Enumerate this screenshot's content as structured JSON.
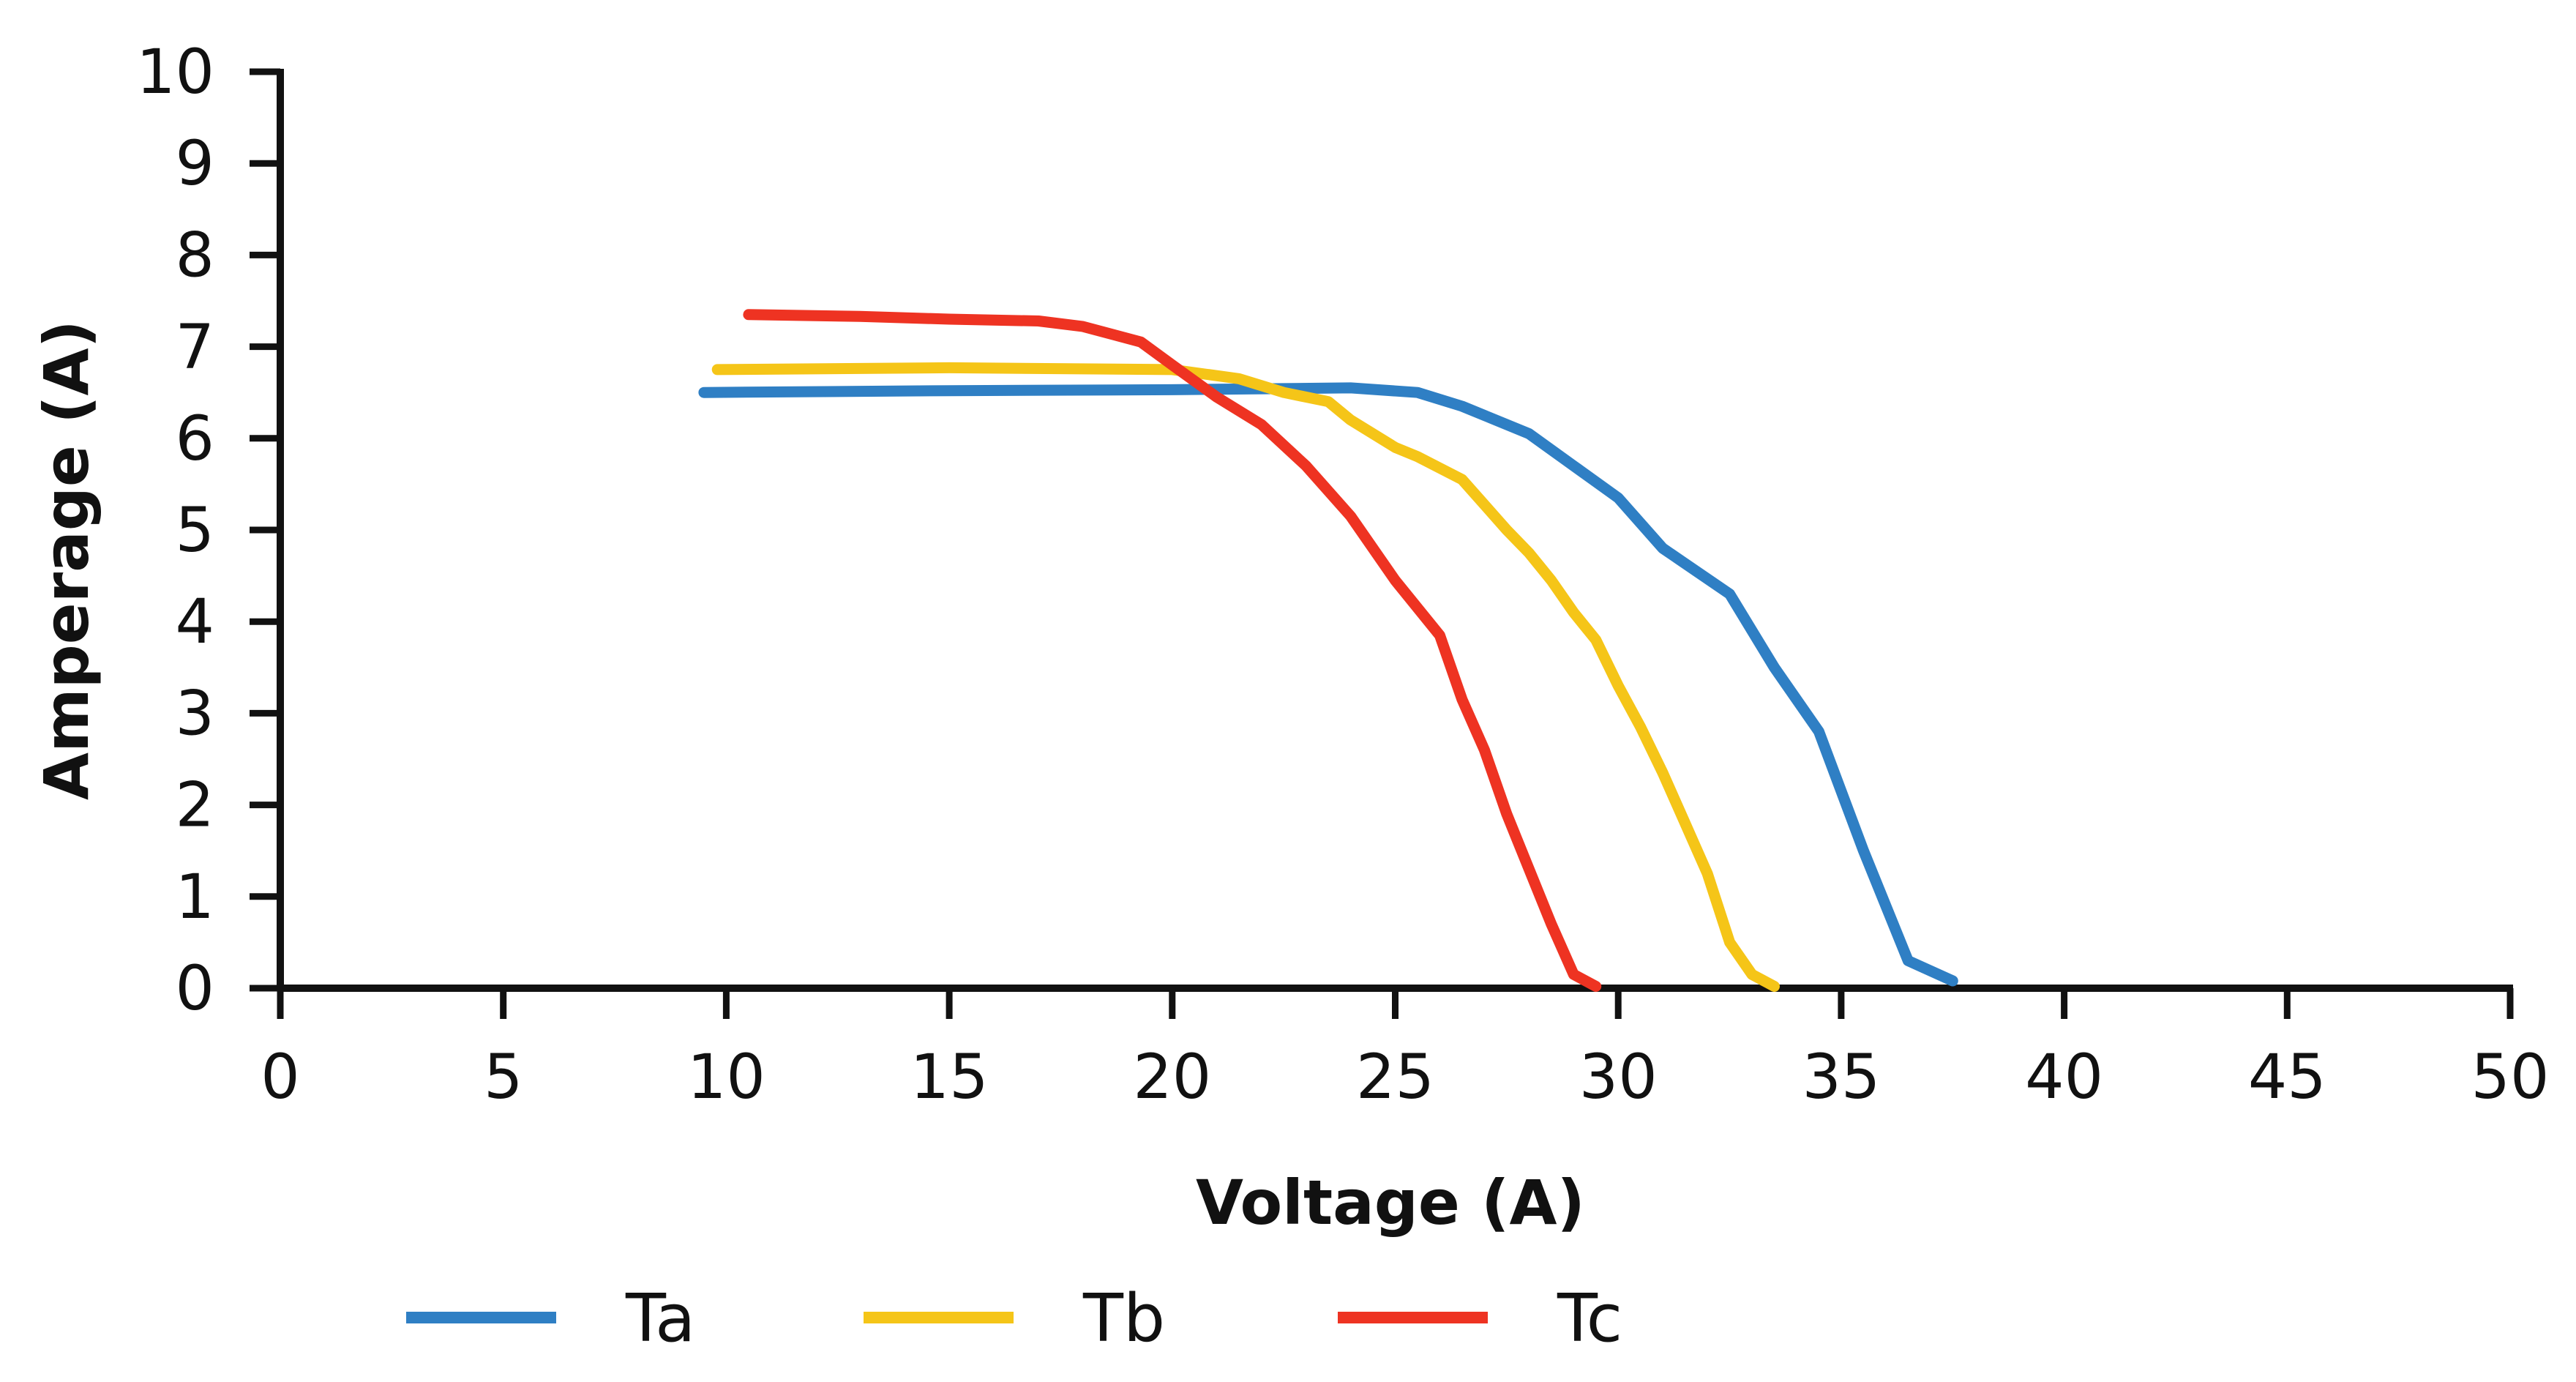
{
  "chart_data": {
    "type": "line",
    "title": "",
    "xlabel": "Voltage (A)",
    "ylabel": "Amperage (A)",
    "xlim": [
      0,
      50
    ],
    "ylim": [
      0,
      10
    ],
    "x_ticks": [
      "0",
      "5",
      "10",
      "15",
      "20",
      "25",
      "30",
      "35",
      "40",
      "45",
      "50"
    ],
    "y_ticks": [
      "0",
      "1",
      "2",
      "3",
      "4",
      "5",
      "6",
      "7",
      "8",
      "9",
      "10"
    ],
    "grid": false,
    "legend_position": "bottom",
    "series": [
      {
        "name": "Ta",
        "color": "#2f7fc4",
        "points": [
          [
            9.5,
            6.5
          ],
          [
            15,
            6.52
          ],
          [
            20,
            6.53
          ],
          [
            24,
            6.55
          ],
          [
            25.5,
            6.5
          ],
          [
            26.5,
            6.35
          ],
          [
            28,
            6.05
          ],
          [
            29,
            5.7
          ],
          [
            30,
            5.35
          ],
          [
            31,
            4.8
          ],
          [
            32.5,
            4.3
          ],
          [
            33.5,
            3.5
          ],
          [
            34.5,
            2.8
          ],
          [
            35.5,
            1.5
          ],
          [
            36.5,
            0.3
          ],
          [
            37.5,
            0.08
          ]
        ]
      },
      {
        "name": "Tb",
        "color": "#f5c518",
        "points": [
          [
            9.8,
            6.75
          ],
          [
            15,
            6.77
          ],
          [
            20,
            6.75
          ],
          [
            21.5,
            6.65
          ],
          [
            22.5,
            6.5
          ],
          [
            23.5,
            6.4
          ],
          [
            24,
            6.2
          ],
          [
            25,
            5.9
          ],
          [
            25.5,
            5.8
          ],
          [
            26.5,
            5.55
          ],
          [
            27.5,
            5.0
          ],
          [
            28,
            4.75
          ],
          [
            28.5,
            4.45
          ],
          [
            29,
            4.1
          ],
          [
            29.5,
            3.8
          ],
          [
            30,
            3.3
          ],
          [
            30.5,
            2.85
          ],
          [
            31,
            2.35
          ],
          [
            31.5,
            1.8
          ],
          [
            32,
            1.25
          ],
          [
            32.5,
            0.5
          ],
          [
            33,
            0.15
          ],
          [
            33.5,
            0.02
          ]
        ]
      },
      {
        "name": "Tc",
        "color": "#ee3322",
        "points": [
          [
            10.5,
            7.35
          ],
          [
            13,
            7.33
          ],
          [
            15,
            7.3
          ],
          [
            17,
            7.28
          ],
          [
            18,
            7.22
          ],
          [
            19.3,
            7.05
          ],
          [
            20,
            6.8
          ],
          [
            21,
            6.45
          ],
          [
            22,
            6.15
          ],
          [
            23,
            5.7
          ],
          [
            24,
            5.15
          ],
          [
            25,
            4.45
          ],
          [
            26,
            3.85
          ],
          [
            26.5,
            3.15
          ],
          [
            27,
            2.6
          ],
          [
            27.5,
            1.9
          ],
          [
            28,
            1.3
          ],
          [
            28.5,
            0.7
          ],
          [
            29,
            0.15
          ],
          [
            29.5,
            0.02
          ]
        ]
      }
    ]
  },
  "legend": {
    "items": [
      {
        "label": "Ta",
        "color": "#2f7fc4"
      },
      {
        "label": "Tb",
        "color": "#f5c518"
      },
      {
        "label": "Tc",
        "color": "#ee3322"
      }
    ]
  }
}
